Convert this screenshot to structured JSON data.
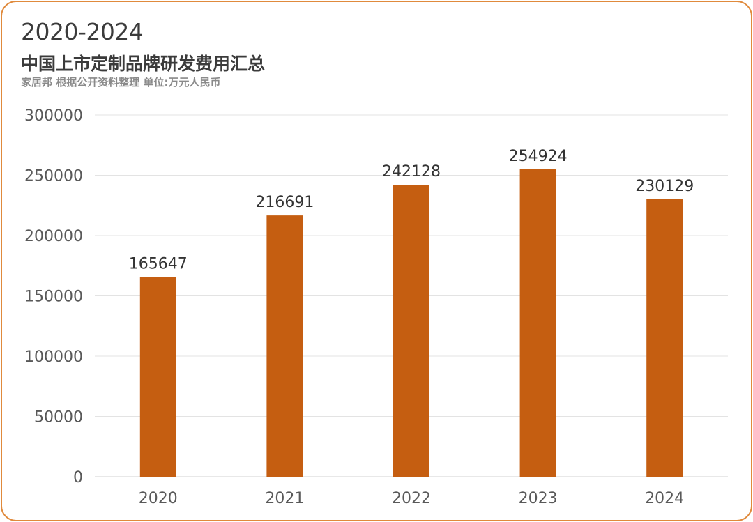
{
  "header": {
    "title": "2020-2024",
    "subtitle": "中国上市定制品牌研发费用汇总",
    "source": "家居邦  根据公开资料整理  单位:万元人民币"
  },
  "colors": {
    "bar": "#c55e11",
    "frame": "#e08a3c",
    "grid": "#e3e3e3",
    "axis_text": "#595959",
    "label_text": "#333333"
  },
  "chart_data": {
    "type": "bar",
    "categories": [
      "2020",
      "2021",
      "2022",
      "2023",
      "2024"
    ],
    "values": [
      165647,
      216691,
      242128,
      254924,
      230129
    ],
    "title": "",
    "xlabel": "",
    "ylabel": "",
    "ylim": [
      0,
      300000
    ],
    "yticks": [
      0,
      50000,
      100000,
      150000,
      200000,
      250000,
      300000
    ],
    "grid": true,
    "data_labels": true,
    "legend": "none"
  }
}
